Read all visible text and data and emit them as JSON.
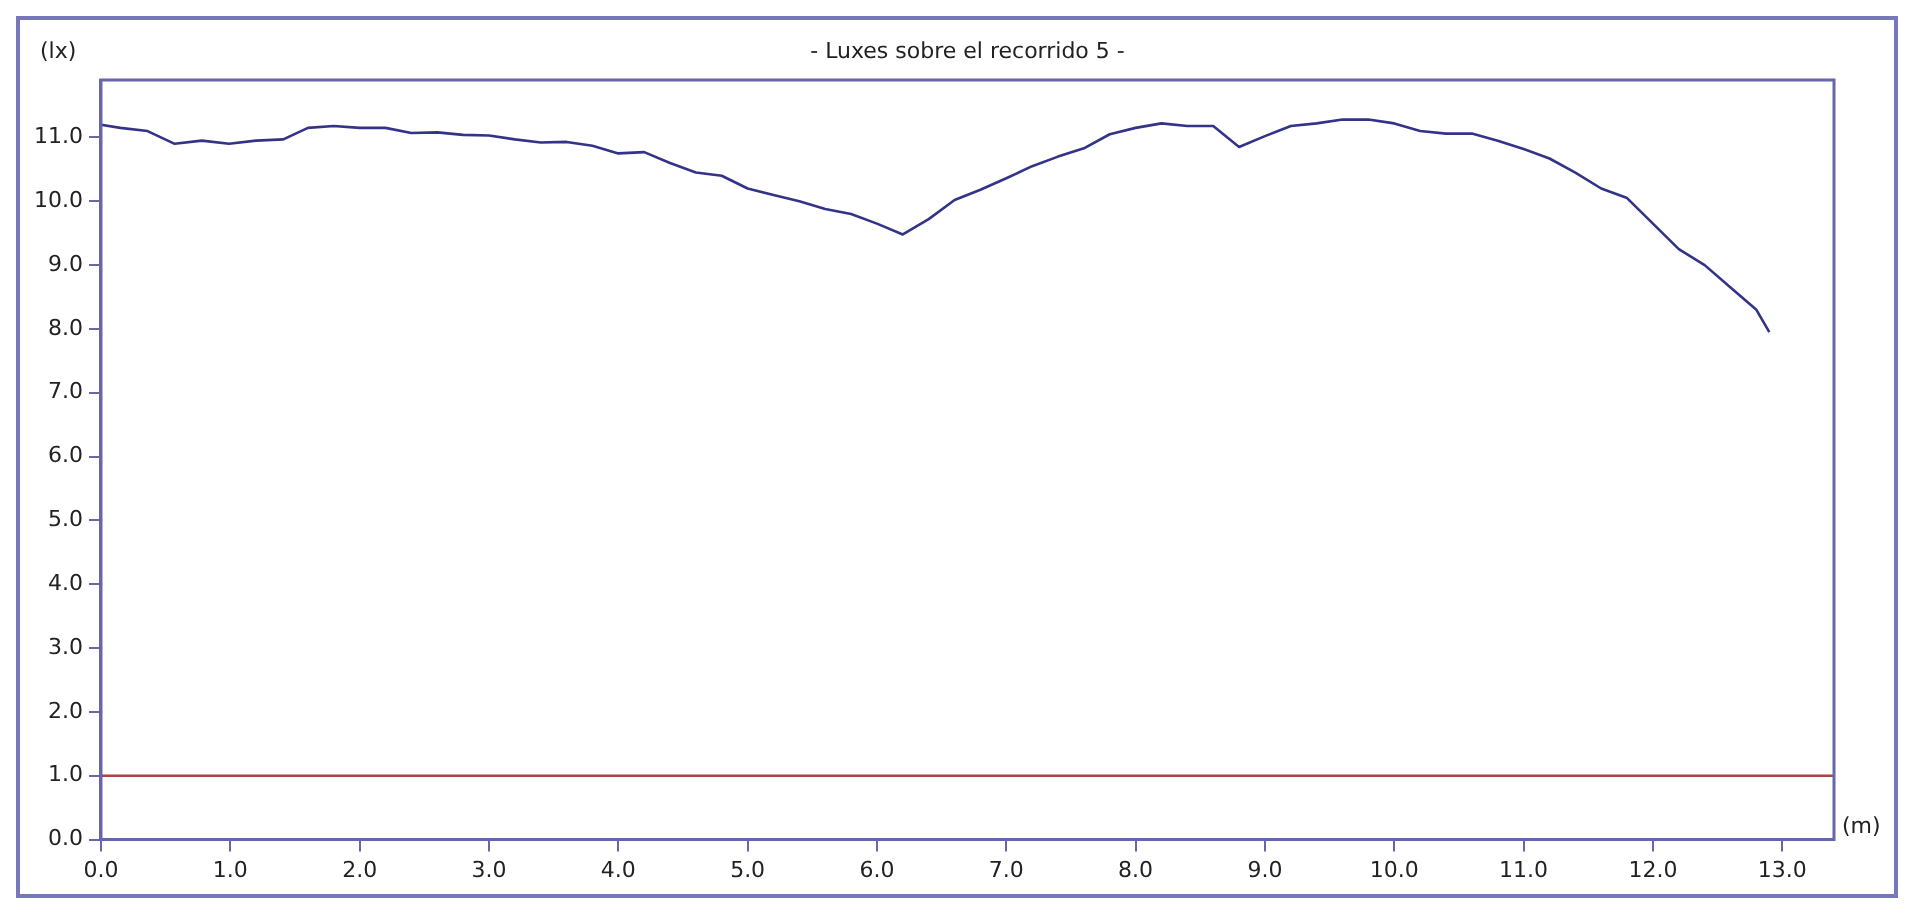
{
  "chart_data": {
    "type": "line",
    "title": "- Luxes sobre el recorrido 5 -",
    "xlabel": "(m)",
    "ylabel": "(lx)",
    "x": [
      0,
      0.15,
      0.36,
      0.57,
      0.78,
      0.99,
      1.2,
      1.41,
      1.6,
      1.8,
      2.0,
      2.2,
      2.4,
      2.6,
      2.8,
      3.0,
      3.2,
      3.4,
      3.6,
      3.8,
      4.0,
      4.2,
      4.4,
      4.6,
      4.8,
      5.0,
      5.2,
      5.4,
      5.6,
      5.8,
      6.0,
      6.2,
      6.4,
      6.6,
      6.8,
      7.0,
      7.2,
      7.4,
      7.6,
      7.8,
      8.0,
      8.2,
      8.4,
      8.6,
      8.8,
      9.0,
      9.2,
      9.4,
      9.6,
      9.8,
      10.0,
      10.2,
      10.4,
      10.6,
      10.8,
      11.0,
      11.2,
      11.4,
      11.6,
      11.8,
      12.0,
      12.2,
      12.4,
      12.6,
      12.8,
      12.9
    ],
    "series": [
      {
        "color": "#333388",
        "values": [
          11.2,
          11.15,
          11.1,
          10.9,
          10.95,
          10.9,
          10.95,
          10.97,
          11.15,
          11.18,
          11.15,
          11.15,
          11.07,
          11.08,
          11.04,
          11.03,
          10.97,
          10.92,
          10.93,
          10.87,
          10.75,
          10.77,
          10.6,
          10.45,
          10.4,
          10.2,
          10.1,
          10.0,
          9.88,
          9.8,
          9.65,
          9.48,
          9.72,
          10.02,
          10.18,
          10.36,
          10.55,
          10.7,
          10.83,
          11.05,
          11.15,
          11.22,
          11.18,
          11.18,
          10.85,
          11.02,
          11.18,
          11.22,
          11.28,
          11.28,
          11.22,
          11.1,
          11.06,
          11.06,
          10.95,
          10.82,
          10.67,
          10.45,
          10.2,
          10.05,
          9.65,
          9.25,
          9.0,
          8.65,
          8.3,
          7.95
        ]
      }
    ],
    "ref_lines": [
      {
        "axis": "y",
        "value": 1.0,
        "color": "#aa4444"
      }
    ],
    "xlim": [
      0,
      13.4
    ],
    "ylim": [
      0,
      11.9
    ],
    "xticks": [
      {
        "value": 0,
        "label": "0.0"
      },
      {
        "value": 1,
        "label": "1.0"
      },
      {
        "value": 2,
        "label": "2.0"
      },
      {
        "value": 3,
        "label": "3.0"
      },
      {
        "value": 4,
        "label": "4.0"
      },
      {
        "value": 5,
        "label": "5.0"
      },
      {
        "value": 6,
        "label": "6.0"
      },
      {
        "value": 7,
        "label": "7.0"
      },
      {
        "value": 8,
        "label": "8.0"
      },
      {
        "value": 9,
        "label": "9.0"
      },
      {
        "value": 10,
        "label": "10.0"
      },
      {
        "value": 11,
        "label": "11.0"
      },
      {
        "value": 12,
        "label": "12.0"
      },
      {
        "value": 13,
        "label": "13.0"
      }
    ],
    "yticks": [
      {
        "value": 0,
        "label": "0.0"
      },
      {
        "value": 1,
        "label": "1.0"
      },
      {
        "value": 2,
        "label": "2.0"
      },
      {
        "value": 3,
        "label": "3.0"
      },
      {
        "value": 4,
        "label": "4.0"
      },
      {
        "value": 5,
        "label": "5.0"
      },
      {
        "value": 6,
        "label": "6.0"
      },
      {
        "value": 7,
        "label": "7.0"
      },
      {
        "value": 8,
        "label": "8.0"
      },
      {
        "value": 9,
        "label": "9.0"
      },
      {
        "value": 10,
        "label": "10.0"
      },
      {
        "value": 11,
        "label": "11.0"
      }
    ],
    "grid": false,
    "legend": false,
    "marker": "none",
    "line_style": "solid"
  }
}
